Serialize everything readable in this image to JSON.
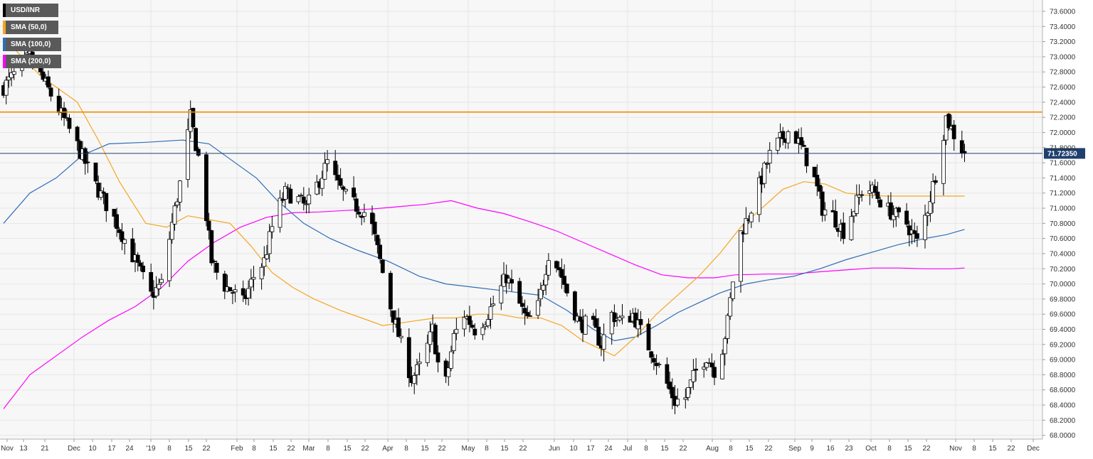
{
  "chart_data": {
    "type": "candlestick",
    "symbol": "USD/INR",
    "legend": [
      {
        "label": "USD/INR",
        "color": "#000000"
      },
      {
        "label": "SMA (50,0)",
        "color": "#f5a623"
      },
      {
        "label": "SMA (100,0)",
        "color": "#2f6db5"
      },
      {
        "label": "SMA (200,0)",
        "color": "#ff00ff"
      }
    ],
    "legend_position": "top-left",
    "grid": true,
    "ylim": [
      67.95,
      73.75
    ],
    "y_ticks": [
      "73.6000",
      "73.4000",
      "73.2000",
      "73.0000",
      "72.8000",
      "72.6000",
      "72.4000",
      "72.2000",
      "72.0000",
      "71.8000",
      "71.6000",
      "71.4000",
      "71.2000",
      "71.0000",
      "70.8000",
      "70.6000",
      "70.4000",
      "70.2000",
      "70.0000",
      "69.8000",
      "69.6000",
      "69.4000",
      "69.2000",
      "69.0000",
      "68.8000",
      "68.6000",
      "68.4000",
      "68.2000",
      "68.0000"
    ],
    "x_ticks": [
      "Nov",
      "13",
      "21",
      "Dec",
      "10",
      "17",
      "24",
      "'19",
      "8",
      "15",
      "22",
      "Feb",
      "8",
      "15",
      "22",
      "Mar",
      "8",
      "15",
      "22",
      "Apr",
      "8",
      "15",
      "22",
      "May",
      "8",
      "15",
      "22",
      "Jun",
      "10",
      "17",
      "24",
      "Jul",
      "8",
      "15",
      "22",
      "Aug",
      "8",
      "15",
      "22",
      "Sep",
      "9",
      "16",
      "23",
      "Oct",
      "8",
      "15",
      "22",
      "Nov",
      "8",
      "15",
      "22",
      "Dec"
    ],
    "resistance_level": 72.27,
    "current_price": 71.7235,
    "current_price_label": "71.72350",
    "close_path": [
      [
        0,
        72.6
      ],
      [
        10,
        73.0
      ],
      [
        18,
        72.5
      ],
      [
        27,
        71.9
      ],
      [
        35,
        71.3
      ],
      [
        43,
        70.8
      ],
      [
        50,
        70.3
      ],
      [
        56,
        69.85
      ],
      [
        60,
        70.0
      ],
      [
        64,
        70.8
      ],
      [
        68,
        71.5
      ],
      [
        71,
        72.2
      ],
      [
        75,
        71.5
      ],
      [
        79,
        70.3
      ],
      [
        83,
        70.0
      ],
      [
        87,
        69.9
      ],
      [
        91,
        69.75
      ],
      [
        95,
        70.1
      ],
      [
        99,
        70.3
      ],
      [
        103,
        70.9
      ],
      [
        107,
        71.2
      ],
      [
        111,
        71.15
      ],
      [
        115,
        71.0
      ],
      [
        119,
        71.3
      ],
      [
        123,
        71.6
      ],
      [
        127,
        71.3
      ],
      [
        131,
        71.1
      ],
      [
        135,
        71.0
      ],
      [
        139,
        70.9
      ],
      [
        143,
        70.3
      ],
      [
        147,
        69.7
      ],
      [
        151,
        69.2
      ],
      [
        155,
        68.75
      ],
      [
        159,
        68.95
      ],
      [
        163,
        69.4
      ],
      [
        167,
        68.5
      ],
      [
        171,
        69.3
      ],
      [
        175,
        69.6
      ],
      [
        179,
        69.4
      ],
      [
        183,
        69.55
      ],
      [
        187,
        69.8
      ],
      [
        191,
        70.1
      ],
      [
        195,
        69.8
      ],
      [
        199,
        69.5
      ],
      [
        203,
        69.7
      ],
      [
        207,
        70.4
      ],
      [
        211,
        70.2
      ],
      [
        215,
        69.8
      ],
      [
        219,
        69.45
      ],
      [
        223,
        69.5
      ],
      [
        227,
        69.2
      ],
      [
        231,
        69.6
      ],
      [
        235,
        69.5
      ],
      [
        239,
        69.6
      ],
      [
        243,
        69.3
      ],
      [
        247,
        69.05
      ],
      [
        251,
        68.75
      ],
      [
        255,
        68.45
      ],
      [
        259,
        68.5
      ],
      [
        263,
        68.85
      ],
      [
        267,
        69.05
      ],
      [
        271,
        68.8
      ],
      [
        275,
        69.5
      ],
      [
        279,
        70.6
      ],
      [
        283,
        70.9
      ],
      [
        287,
        71.3
      ],
      [
        291,
        71.7
      ],
      [
        295,
        71.9
      ],
      [
        299,
        72.05
      ],
      [
        303,
        71.8
      ],
      [
        307,
        71.5
      ],
      [
        311,
        71.0
      ],
      [
        315,
        70.9
      ],
      [
        319,
        70.7
      ],
      [
        323,
        71.0
      ],
      [
        327,
        71.3
      ],
      [
        331,
        71.2
      ],
      [
        335,
        71.0
      ],
      [
        339,
        70.9
      ],
      [
        343,
        70.8
      ],
      [
        347,
        70.55
      ],
      [
        351,
        71.0
      ],
      [
        355,
        71.6
      ],
      [
        358,
        72.2
      ],
      [
        362,
        71.9
      ],
      [
        365,
        71.72
      ]
    ],
    "sma50_path": [
      [
        0,
        73.25
      ],
      [
        14,
        72.75
      ],
      [
        28,
        72.4
      ],
      [
        36,
        71.9
      ],
      [
        44,
        71.35
      ],
      [
        54,
        70.8
      ],
      [
        62,
        70.75
      ],
      [
        70,
        70.9
      ],
      [
        78,
        70.85
      ],
      [
        86,
        70.8
      ],
      [
        94,
        70.5
      ],
      [
        102,
        70.15
      ],
      [
        110,
        69.95
      ],
      [
        118,
        69.8
      ],
      [
        128,
        69.65
      ],
      [
        136,
        69.55
      ],
      [
        144,
        69.45
      ],
      [
        154,
        69.5
      ],
      [
        164,
        69.55
      ],
      [
        172,
        69.55
      ],
      [
        180,
        69.6
      ],
      [
        188,
        69.6
      ],
      [
        196,
        69.55
      ],
      [
        204,
        69.55
      ],
      [
        212,
        69.45
      ],
      [
        220,
        69.25
      ],
      [
        226,
        69.15
      ],
      [
        232,
        69.05
      ],
      [
        240,
        69.3
      ],
      [
        248,
        69.6
      ],
      [
        256,
        69.85
      ],
      [
        264,
        70.1
      ],
      [
        272,
        70.4
      ],
      [
        280,
        70.75
      ],
      [
        288,
        71.0
      ],
      [
        296,
        71.25
      ],
      [
        304,
        71.35
      ],
      [
        312,
        71.32
      ],
      [
        320,
        71.2
      ],
      [
        328,
        71.17
      ],
      [
        336,
        71.16
      ],
      [
        344,
        71.16
      ],
      [
        350,
        71.16
      ],
      [
        356,
        71.16
      ],
      [
        365,
        71.16
      ]
    ],
    "sma100_path": [
      [
        0,
        70.8
      ],
      [
        10,
        71.2
      ],
      [
        20,
        71.4
      ],
      [
        30,
        71.7
      ],
      [
        40,
        71.85
      ],
      [
        54,
        71.87
      ],
      [
        68,
        71.9
      ],
      [
        78,
        71.85
      ],
      [
        86,
        71.65
      ],
      [
        96,
        71.4
      ],
      [
        104,
        71.1
      ],
      [
        114,
        70.8
      ],
      [
        124,
        70.6
      ],
      [
        134,
        70.45
      ],
      [
        146,
        70.3
      ],
      [
        158,
        70.1
      ],
      [
        168,
        70.0
      ],
      [
        180,
        69.95
      ],
      [
        192,
        69.9
      ],
      [
        204,
        69.85
      ],
      [
        214,
        69.65
      ],
      [
        224,
        69.4
      ],
      [
        232,
        69.25
      ],
      [
        240,
        69.3
      ],
      [
        248,
        69.45
      ],
      [
        256,
        69.62
      ],
      [
        264,
        69.75
      ],
      [
        272,
        69.88
      ],
      [
        282,
        70.0
      ],
      [
        290,
        70.05
      ],
      [
        300,
        70.1
      ],
      [
        310,
        70.2
      ],
      [
        320,
        70.32
      ],
      [
        330,
        70.42
      ],
      [
        340,
        70.52
      ],
      [
        350,
        70.6
      ],
      [
        358,
        70.65
      ],
      [
        365,
        70.72
      ]
    ],
    "sma200_path": [
      [
        0,
        68.35
      ],
      [
        10,
        68.8
      ],
      [
        20,
        69.05
      ],
      [
        30,
        69.3
      ],
      [
        40,
        69.52
      ],
      [
        50,
        69.7
      ],
      [
        60,
        69.95
      ],
      [
        70,
        70.3
      ],
      [
        80,
        70.55
      ],
      [
        90,
        70.75
      ],
      [
        100,
        70.88
      ],
      [
        110,
        70.94
      ],
      [
        120,
        70.95
      ],
      [
        130,
        70.97
      ],
      [
        140,
        70.99
      ],
      [
        150,
        71.02
      ],
      [
        160,
        71.05
      ],
      [
        170,
        71.1
      ],
      [
        180,
        71.0
      ],
      [
        190,
        70.93
      ],
      [
        200,
        70.82
      ],
      [
        210,
        70.7
      ],
      [
        220,
        70.55
      ],
      [
        230,
        70.4
      ],
      [
        240,
        70.25
      ],
      [
        250,
        70.12
      ],
      [
        260,
        70.08
      ],
      [
        270,
        70.08
      ],
      [
        278,
        70.12
      ],
      [
        290,
        70.13
      ],
      [
        300,
        70.13
      ],
      [
        310,
        70.16
      ],
      [
        318,
        70.18
      ],
      [
        330,
        70.21
      ],
      [
        340,
        70.21
      ],
      [
        350,
        70.2
      ],
      [
        360,
        70.2
      ],
      [
        365,
        70.21
      ]
    ]
  }
}
